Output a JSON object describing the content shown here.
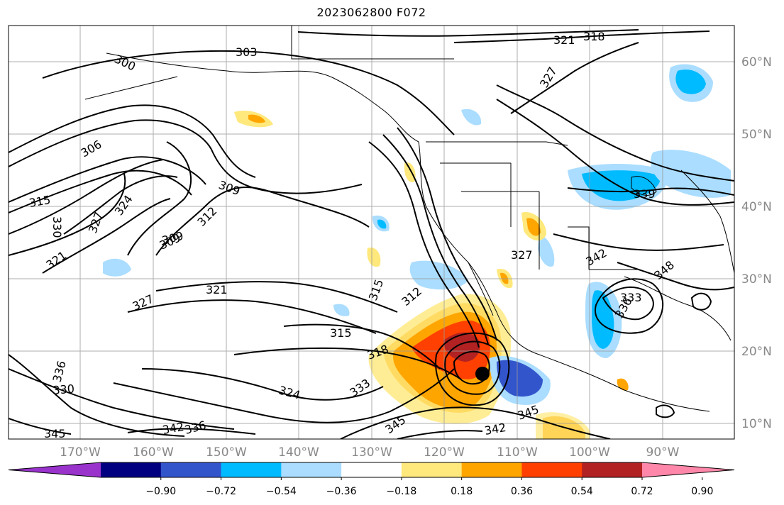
{
  "title": "2023062800 F072",
  "map": {
    "lon_labels": [
      "170°W",
      "160°W",
      "150°W",
      "140°W",
      "130°W",
      "120°W",
      "110°W",
      "100°W",
      "90°W"
    ],
    "lat_labels": [
      "60°N",
      "50°N",
      "40°N",
      "30°N",
      "20°N",
      "10°N"
    ],
    "contour_labels": [
      "303",
      "300",
      "321",
      "318",
      "309",
      "306",
      "315",
      "309",
      "312",
      "327",
      "324",
      "330",
      "321",
      "309",
      "327",
      "321",
      "315",
      "312",
      "315",
      "318",
      "336",
      "330",
      "324",
      "333",
      "345",
      "342",
      "345",
      "342",
      "336",
      "345",
      "339",
      "342",
      "333",
      "336",
      "327",
      "327",
      "348"
    ],
    "storm_marker": "storm-center"
  },
  "colorbar": {
    "tick_labels": [
      "−0.90",
      "−0.72",
      "−0.54",
      "−0.36",
      "−0.18",
      "0.18",
      "0.36",
      "0.54",
      "0.72",
      "0.90"
    ],
    "colors": [
      "#9933cc",
      "#000080",
      "#3355cc",
      "#00bbff",
      "#aaddff",
      "#ffffff",
      "#ffe87c",
      "#ffa500",
      "#ff4000",
      "#b22222",
      "#ff88aa"
    ]
  }
}
